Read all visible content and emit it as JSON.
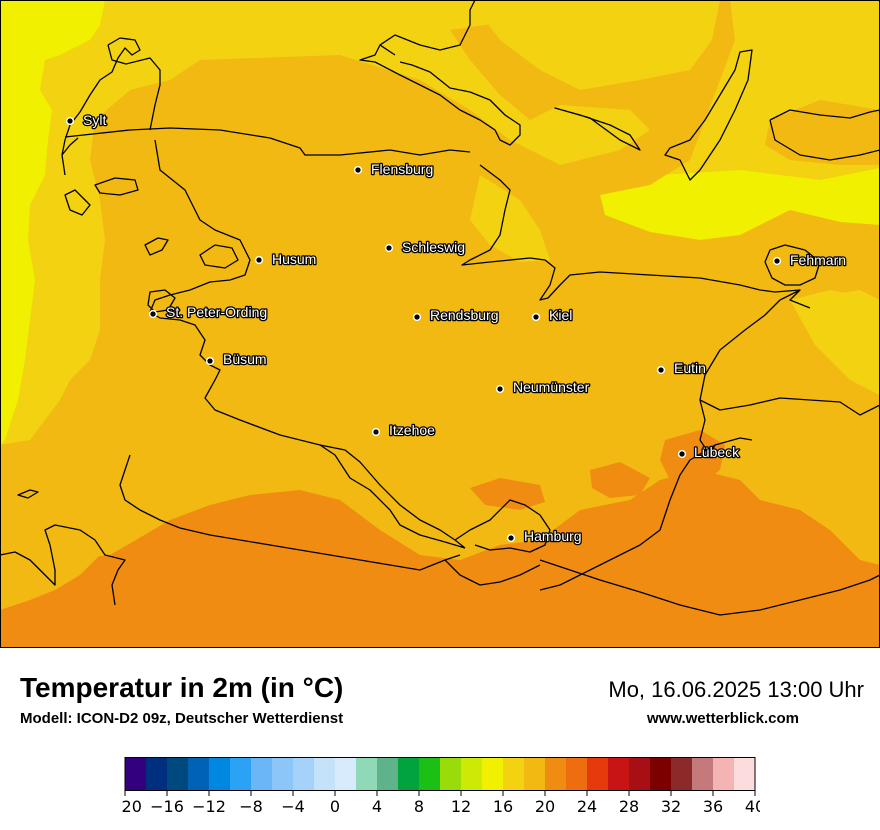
{
  "map": {
    "cities": [
      {
        "name": "Sylt"
      },
      {
        "name": "Flensburg"
      },
      {
        "name": "Schleswig"
      },
      {
        "name": "Husum"
      },
      {
        "name": "Fehmarn"
      },
      {
        "name": "St. Peter-Ording"
      },
      {
        "name": "Rendsburg"
      },
      {
        "name": "Kiel"
      },
      {
        "name": "Büsum"
      },
      {
        "name": "Eutin"
      },
      {
        "name": "Neumünster"
      },
      {
        "name": "Itzehoe"
      },
      {
        "name": "Lübeck"
      },
      {
        "name": "Hamburg"
      }
    ],
    "colors": {
      "t16": "#f0f000",
      "t18": "#f2d211",
      "t20": "#f2b912",
      "t22": "#f08c12"
    }
  },
  "footer": {
    "title": "Temperatur in 2m (in °C)",
    "model": "Modell: ICON-D2 09z, Deutscher Wetterdienst",
    "datetime": "Mo, 16.06.2025 13:00 Uhr",
    "website": "www.wetterblick.com"
  },
  "legend": {
    "ticks": [
      "−20",
      "−16",
      "−12",
      "−8",
      "−4",
      "0",
      "4",
      "8",
      "12",
      "16",
      "20",
      "24",
      "28",
      "32",
      "36",
      "40"
    ],
    "colors": [
      "#33007f",
      "#002f7f",
      "#00497f",
      "#0062b4",
      "#0087e0",
      "#2ca2f4",
      "#6ab6f7",
      "#8cc5f8",
      "#a5d2fa",
      "#c5e2fb",
      "#d8ebfc",
      "#90d9b8",
      "#5fb38a",
      "#00a33d",
      "#1cbf14",
      "#99dc0a",
      "#ccea05",
      "#f0f000",
      "#f2d211",
      "#f2b912",
      "#f08c12",
      "#ee6d10",
      "#e63a0c",
      "#c81414",
      "#a80f14",
      "#7d0000",
      "#8c2a2a",
      "#c47a7a",
      "#f4b4b4",
      "#fcdcdc"
    ]
  }
}
